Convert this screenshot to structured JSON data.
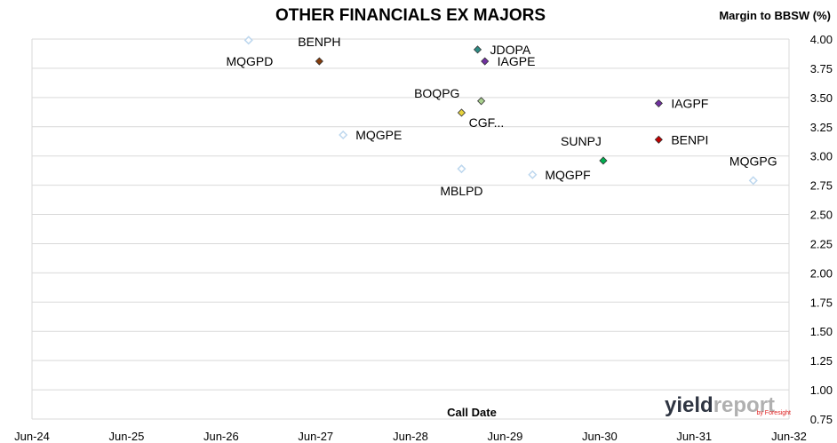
{
  "chart_data": {
    "type": "scatter",
    "title": "OTHER FINANCIALS EX MAJORS",
    "ylabel": "Margin to BBSW (%)",
    "xlabel": "Call Date",
    "xlim": [
      "2024-06-01",
      "2032-06-01"
    ],
    "ylim": [
      0.75,
      4.0
    ],
    "x_ticks": [
      {
        "date": "2024-06-01",
        "label": "Jun-24"
      },
      {
        "date": "2025-06-01",
        "label": "Jun-25"
      },
      {
        "date": "2026-06-01",
        "label": "Jun-26"
      },
      {
        "date": "2027-06-01",
        "label": "Jun-27"
      },
      {
        "date": "2028-06-01",
        "label": "Jun-28"
      },
      {
        "date": "2029-06-01",
        "label": "Jun-29"
      },
      {
        "date": "2030-06-01",
        "label": "Jun-30"
      },
      {
        "date": "2031-06-01",
        "label": "Jun-31"
      },
      {
        "date": "2032-06-01",
        "label": "Jun-32"
      }
    ],
    "y_ticks": [
      {
        "value": 4.0,
        "label": "4.00"
      },
      {
        "value": 3.75,
        "label": "3.75"
      },
      {
        "value": 3.5,
        "label": "3.50"
      },
      {
        "value": 3.25,
        "label": "3.25"
      },
      {
        "value": 3.0,
        "label": "3.00"
      },
      {
        "value": 2.75,
        "label": "2.75"
      },
      {
        "value": 2.5,
        "label": "2.50"
      },
      {
        "value": 2.25,
        "label": "2.25"
      },
      {
        "value": 2.0,
        "label": "2.00"
      },
      {
        "value": 1.75,
        "label": "1.75"
      },
      {
        "value": 1.5,
        "label": "1.50"
      },
      {
        "value": 1.25,
        "label": "1.25"
      },
      {
        "value": 1.0,
        "label": "1.00"
      },
      {
        "value": 0.75,
        "label": "0.75"
      }
    ],
    "grid": true,
    "points": [
      {
        "label": "MQGPD",
        "date": "2026-09-15",
        "value": 3.99,
        "color": "#bdd7ee",
        "hollow": true,
        "label_pos": "none"
      },
      {
        "label": "MQGPD",
        "date": "2027-06-15",
        "value": 3.81,
        "color": "#843c0c",
        "hollow": false,
        "label_pos": "left"
      },
      {
        "label": "BENPH",
        "date": "2027-06-15",
        "value": 3.81,
        "color": "#843c0c",
        "hollow": false,
        "label_pos": "above"
      },
      {
        "label": "JDOPA",
        "date": "2029-02-15",
        "value": 3.91,
        "color": "#2e8b84",
        "hollow": false,
        "label_pos": "right"
      },
      {
        "label": "IAGPE",
        "date": "2029-03-15",
        "value": 3.81,
        "color": "#7030a0",
        "hollow": false,
        "label_pos": "right-below"
      },
      {
        "label": "BOQPG",
        "date": "2028-12-15",
        "value": 3.37,
        "color": "#e6d23c",
        "hollow": false,
        "label_pos": "above-left"
      },
      {
        "label": "CGF...",
        "date": "2029-03-01",
        "value": 3.47,
        "color": "#a9d08e",
        "hollow": false,
        "label_pos": "below-right"
      },
      {
        "label": "IAGPF",
        "date": "2031-01-15",
        "value": 3.45,
        "color": "#7030a0",
        "hollow": false,
        "label_pos": "right"
      },
      {
        "label": "MQGPE",
        "date": "2027-09-15",
        "value": 3.18,
        "color": "#bdd7ee",
        "hollow": true,
        "label_pos": "right"
      },
      {
        "label": "BENPI",
        "date": "2031-01-15",
        "value": 3.14,
        "color": "#c00000",
        "hollow": false,
        "label_pos": "right"
      },
      {
        "label": "SUNPJ",
        "date": "2030-06-15",
        "value": 2.96,
        "color": "#00b050",
        "hollow": false,
        "label_pos": "above-left"
      },
      {
        "label": "MBLPD",
        "date": "2028-12-15",
        "value": 2.89,
        "color": "#bdd7ee",
        "hollow": true,
        "label_pos": "below"
      },
      {
        "label": "MQGPF",
        "date": "2029-09-15",
        "value": 2.84,
        "color": "#bdd7ee",
        "hollow": true,
        "label_pos": "right"
      },
      {
        "label": "MQGPG",
        "date": "2032-01-15",
        "value": 2.79,
        "color": "#bdd7ee",
        "hollow": true,
        "label_pos": "above"
      }
    ]
  },
  "logo": {
    "word1": "yield",
    "word2": "report",
    "sub": "by Foresight",
    "color1": "#2f3542",
    "color2": "#b0b0b0",
    "accent": "#e02020"
  }
}
